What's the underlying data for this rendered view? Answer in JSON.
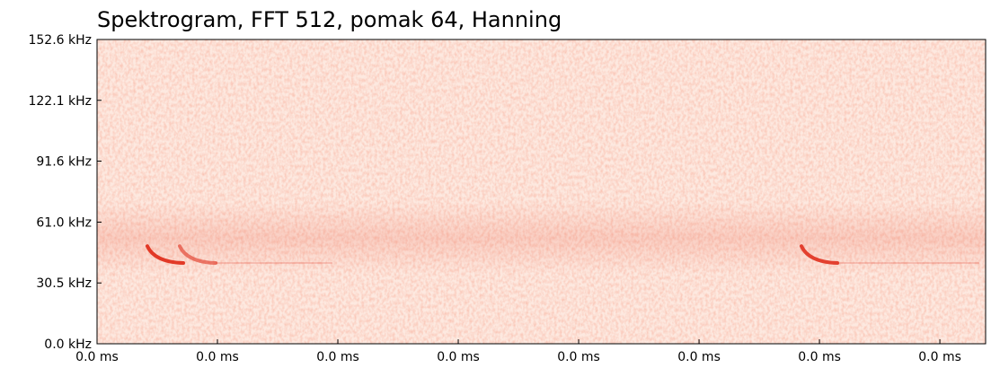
{
  "chart_data": {
    "type": "spectrogram",
    "title": "Spektrogram, FFT 512, pomak 64, Hanning",
    "color": "#e0301e",
    "ylim": [
      0,
      152.6
    ],
    "yticks": [
      {
        "value": 0,
        "label": "0.0 kHz"
      },
      {
        "value": 30.5,
        "label": "30.5 kHz"
      },
      {
        "value": 61.0,
        "label": "61.0 kHz"
      },
      {
        "value": 91.6,
        "label": "91.6 kHz"
      },
      {
        "value": 122.1,
        "label": "122.1 kHz"
      },
      {
        "value": 152.6,
        "label": "152.6 kHz"
      }
    ],
    "xlim": [
      0,
      0.0369
    ],
    "xticks": [
      {
        "value": 0,
        "label": "0.0 ms"
      },
      {
        "value": 0.005,
        "label": "0.0 ms"
      },
      {
        "value": 0.01,
        "label": "0.0 ms"
      },
      {
        "value": 0.015,
        "label": "0.0 ms"
      },
      {
        "value": 0.02,
        "label": "0.0 ms"
      },
      {
        "value": 0.025,
        "label": "0.0 ms"
      },
      {
        "value": 0.03,
        "label": "0.0 ms"
      },
      {
        "value": 0.035,
        "label": "0.0 ms"
      }
    ]
  }
}
